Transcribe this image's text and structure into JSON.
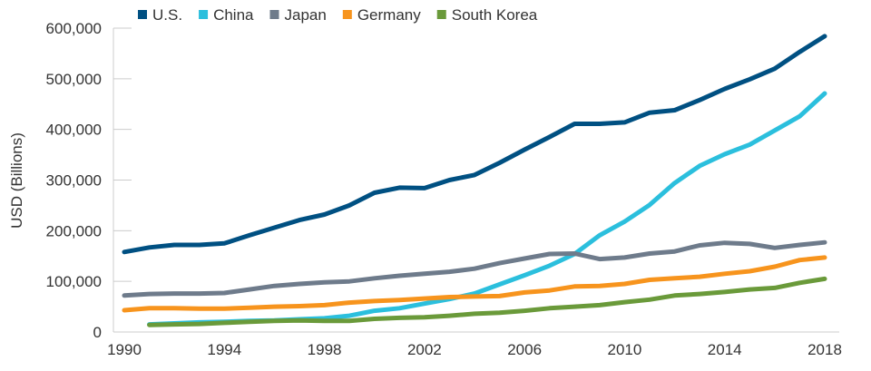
{
  "chart_data": {
    "type": "line",
    "title": "",
    "xlabel": "",
    "ylabel": "USD (Billions)",
    "ylim": [
      0,
      600000
    ],
    "xlim": [
      1990,
      2018
    ],
    "grid": false,
    "legend_position": "top",
    "y_ticks": [
      0,
      100000,
      200000,
      300000,
      400000,
      500000,
      600000
    ],
    "y_tick_labels": [
      "0",
      "100,000",
      "200,000",
      "300,000",
      "400,000",
      "500,000",
      "600,000"
    ],
    "x_ticks": [
      1990,
      1994,
      1998,
      2002,
      2006,
      2010,
      2014,
      2018
    ],
    "x_tick_labels": [
      "1990",
      "1994",
      "1998",
      "2002",
      "2006",
      "2010",
      "2014",
      "2018"
    ],
    "x": [
      1990,
      1991,
      1992,
      1993,
      1994,
      1995,
      1996,
      1997,
      1998,
      1999,
      2000,
      2001,
      2002,
      2003,
      2004,
      2005,
      2006,
      2007,
      2008,
      2009,
      2010,
      2011,
      2012,
      2013,
      2014,
      2015,
      2016,
      2017,
      2018
    ],
    "series": [
      {
        "name": "U.S.",
        "color": "#005082",
        "values": [
          158000,
          167000,
          172000,
          172000,
          175000,
          191000,
          206000,
          221000,
          232000,
          250000,
          275000,
          285000,
          284000,
          300000,
          310000,
          334000,
          360000,
          385000,
          411000,
          411000,
          414000,
          433000,
          438000,
          458000,
          480000,
          499000,
          520000,
          553000,
          584000
        ]
      },
      {
        "name": "China",
        "color": "#2BBFDD",
        "values": [
          null,
          15000,
          17000,
          19000,
          20000,
          22000,
          23000,
          25000,
          27000,
          32000,
          42000,
          47000,
          56000,
          65000,
          76000,
          94000,
          112000,
          131000,
          154000,
          191000,
          218000,
          251000,
          294000,
          328000,
          351000,
          370000,
          398000,
          426000,
          471000
        ]
      },
      {
        "name": "Japan",
        "color": "#6E7B8B",
        "values": [
          72000,
          75000,
          76000,
          76000,
          77000,
          84000,
          91000,
          95000,
          98000,
          100000,
          106000,
          111000,
          115000,
          119000,
          125000,
          136000,
          145000,
          154000,
          155000,
          144000,
          147000,
          155000,
          159000,
          171000,
          176000,
          174000,
          166000,
          172000,
          177000
        ]
      },
      {
        "name": "Germany",
        "color": "#F7941D",
        "values": [
          43000,
          47000,
          47000,
          46000,
          46000,
          48000,
          50000,
          51000,
          53000,
          58000,
          61000,
          63000,
          66000,
          69000,
          70000,
          71000,
          78000,
          82000,
          90000,
          91000,
          95000,
          103000,
          106000,
          109000,
          115000,
          120000,
          129000,
          142000,
          147000
        ]
      },
      {
        "name": "South Korea",
        "color": "#6A9A3A",
        "values": [
          null,
          14000,
          15000,
          16000,
          18000,
          20000,
          22000,
          23000,
          22000,
          22000,
          26000,
          28000,
          29000,
          32000,
          36000,
          38000,
          42000,
          47000,
          50000,
          53000,
          59000,
          64000,
          72000,
          75000,
          79000,
          84000,
          87000,
          97000,
          105000
        ]
      }
    ]
  }
}
